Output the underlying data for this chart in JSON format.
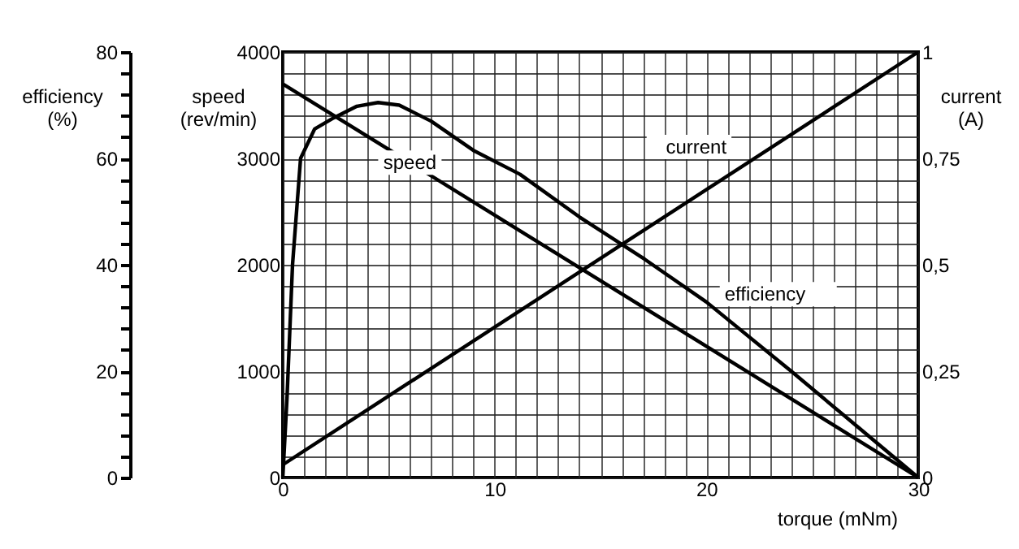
{
  "chart_data": {
    "type": "line",
    "xlabel": "torque (mNm)",
    "ylabel": "speed (rev/min)",
    "y2label": "current (A)",
    "y3label": "efficiency (%)",
    "xlim": [
      0,
      30
    ],
    "xticks": [
      0,
      {
        "value": 1,
        "label": null
      },
      {
        "value": 2,
        "label": null
      },
      {
        "value": 3,
        "label": null
      },
      {
        "value": 4,
        "label": null
      },
      {
        "value": 5,
        "label": null
      },
      {
        "value": 6,
        "label": null
      },
      {
        "value": 7,
        "label": null
      },
      {
        "value": 8,
        "label": null
      },
      {
        "value": 9,
        "label": null
      },
      10,
      {
        "value": 11,
        "label": null
      },
      {
        "value": 12,
        "label": null
      },
      {
        "value": 13,
        "label": null
      },
      {
        "value": 14,
        "label": null
      },
      {
        "value": 15,
        "label": null
      },
      {
        "value": 16,
        "label": null
      },
      {
        "value": 17,
        "label": null
      },
      {
        "value": 18,
        "label": null
      },
      {
        "value": 19,
        "label": null
      },
      20,
      {
        "value": 21,
        "label": null
      },
      {
        "value": 22,
        "label": null
      },
      {
        "value": 23,
        "label": null
      },
      {
        "value": 24,
        "label": null
      },
      {
        "value": 25,
        "label": null
      },
      {
        "value": 26,
        "label": null
      },
      {
        "value": 27,
        "label": null
      },
      {
        "value": 28,
        "label": null
      },
      {
        "value": 29,
        "label": null
      },
      30
    ],
    "ylim": [
      0,
      4000
    ],
    "yticks": [
      0,
      {
        "value": 200,
        "label": null
      },
      {
        "value": 400,
        "label": null
      },
      {
        "value": 600,
        "label": null
      },
      {
        "value": 800,
        "label": null
      },
      1000,
      {
        "value": 1200,
        "label": null
      },
      {
        "value": 1400,
        "label": null
      },
      {
        "value": 1600,
        "label": null
      },
      {
        "value": 1800,
        "label": null
      },
      2000,
      {
        "value": 2200,
        "label": null
      },
      {
        "value": 2400,
        "label": null
      },
      {
        "value": 2600,
        "label": null
      },
      {
        "value": 2800,
        "label": null
      },
      3000,
      {
        "value": 3200,
        "label": null
      },
      {
        "value": 3400,
        "label": null
      },
      {
        "value": 3600,
        "label": null
      },
      {
        "value": 3800,
        "label": null
      },
      4000
    ],
    "y2lim": [
      0,
      1
    ],
    "y2ticks": [
      0,
      {
        "value": 0.25,
        "label": "0,25"
      },
      {
        "value": 0.5,
        "label": "0,5"
      },
      {
        "value": 0.75,
        "label": "0,75"
      },
      1
    ],
    "y3lim": [
      0,
      80
    ],
    "y3ticks": [
      0,
      {
        "value": 4,
        "label": null
      },
      {
        "value": 8,
        "label": null
      },
      {
        "value": 12,
        "label": null
      },
      {
        "value": 16,
        "label": null
      },
      20,
      {
        "value": 24,
        "label": null
      },
      {
        "value": 28,
        "label": null
      },
      {
        "value": 32,
        "label": null
      },
      {
        "value": 36,
        "label": null
      },
      40,
      {
        "value": 44,
        "label": null
      },
      {
        "value": 48,
        "label": null
      },
      {
        "value": 52,
        "label": null
      },
      {
        "value": 56,
        "label": null
      },
      60,
      {
        "value": 64,
        "label": null
      },
      {
        "value": 68,
        "label": null
      },
      {
        "value": 72,
        "label": null
      },
      {
        "value": 76,
        "label": null
      },
      80
    ],
    "grid": true,
    "series": [
      {
        "name": "speed",
        "color": "#000000",
        "x": [
          0,
          30
        ],
        "values": [
          3700,
          0
        ]
      },
      {
        "name": "current",
        "color": "#000000",
        "axis": "y2",
        "x": [
          0,
          30
        ],
        "values": [
          0.03,
          1
        ]
      },
      {
        "name": "efficiency",
        "color": "#000000",
        "axis": "y3",
        "x": [
          0,
          0.2,
          0.46,
          0.84,
          1.5,
          2.4,
          3.5,
          4.5,
          5.5,
          7,
          9,
          11.2,
          14,
          17.1,
          20,
          24,
          27,
          30
        ],
        "values": [
          0,
          15,
          40,
          60,
          65.5,
          67.6,
          69.8,
          70.5,
          70,
          67,
          61.5,
          57,
          49,
          41,
          33,
          20,
          10,
          0
        ]
      }
    ]
  }
}
